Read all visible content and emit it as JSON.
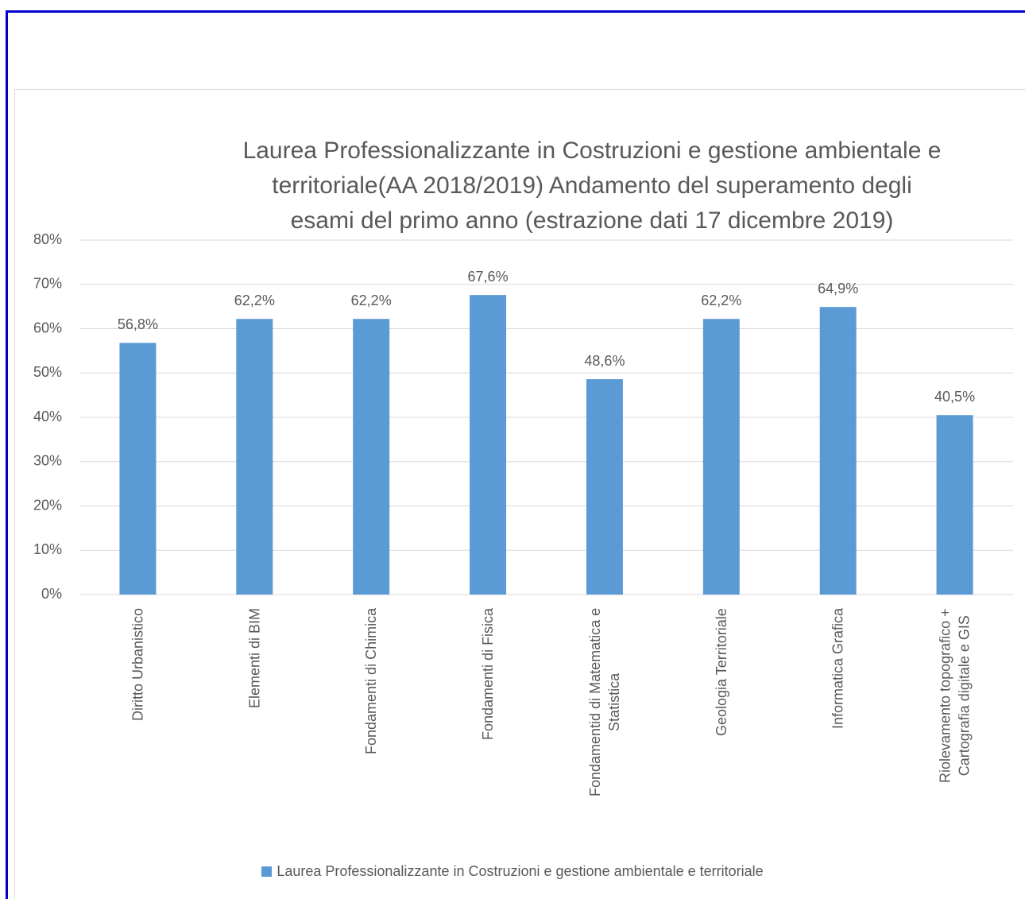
{
  "chart_data": {
    "type": "bar",
    "title": "Laurea Professionalizzante in Costruzioni e gestione ambientale e\nterritoriale(AA 2018/2019) Andamento del superamento degli\nesami  del primo anno (estrazione dati 17 dicembre 2019)",
    "categories": [
      "Diritto Urbanistico",
      "Elementi di BIM",
      "Fondamenti di Chimica",
      "Fondamenti di Fisica",
      "Fondamentid di Matematica e\nStatistica",
      "Geologia Territoriale",
      "Informatica Grafica",
      "Riolevamento topografico +\nCartografia digitale e GIS"
    ],
    "series": [
      {
        "name": "Laurea Professionalizzante in Costruzioni e gestione ambientale e territoriale",
        "color": "#5b9bd5",
        "values": [
          56.8,
          62.2,
          62.2,
          67.6,
          48.6,
          62.2,
          64.9,
          40.5
        ],
        "value_labels": [
          "56,8%",
          "62,2%",
          "62,2%",
          "67,6%",
          "48,6%",
          "62,2%",
          "64,9%",
          "40,5%"
        ]
      }
    ],
    "ylim": [
      0,
      80
    ],
    "yticks": [
      {
        "value": 0,
        "label": "0%"
      },
      {
        "value": 10,
        "label": "10%"
      },
      {
        "value": 20,
        "label": "20%"
      },
      {
        "value": 30,
        "label": "30%"
      },
      {
        "value": 40,
        "label": "40%"
      },
      {
        "value": 50,
        "label": "50%"
      },
      {
        "value": 60,
        "label": "60%"
      },
      {
        "value": 70,
        "label": "70%"
      },
      {
        "value": 80,
        "label": "80%"
      }
    ],
    "grid": true,
    "legend": "bottom"
  }
}
